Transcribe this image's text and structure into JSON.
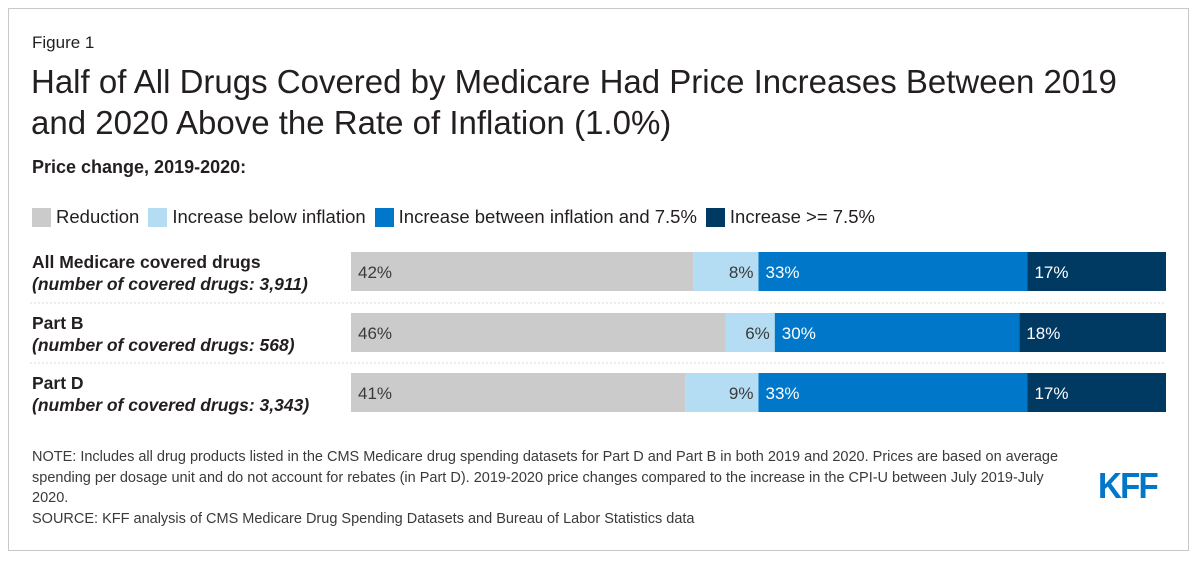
{
  "figure_label": "Figure 1",
  "title": "Half of All Drugs Covered by Medicare Had Price Increases Between 2019 and 2020 Above the Rate of Inflation (1.0%)",
  "subtitle": "Price change, 2019-2020:",
  "note": "NOTE: Includes all drug products listed in the CMS Medicare drug spending datasets for Part D and Part B in both 2019 and 2020. Prices are based on average spending per dosage unit and do not account for rebates (in Part D). 2019-2020 price changes compared to the increase in the CPI-U between July 2019-July 2020.",
  "source": "SOURCE: KFF analysis of CMS Medicare Drug Spending Datasets and Bureau of Labor Statistics data",
  "logo": "KFF",
  "chart_data": {
    "type": "bar",
    "orientation": "horizontal",
    "stacked": "100%",
    "categories": [
      {
        "label": "All Medicare covered drugs",
        "sublabel": "(number of covered drugs: 3,911)"
      },
      {
        "label": "Part B",
        "sublabel": "(number of covered drugs: 568)"
      },
      {
        "label": "Part D",
        "sublabel": "(number of covered drugs: 3,343)"
      }
    ],
    "series": [
      {
        "name": "Reduction",
        "color": "#cbcbcb",
        "label_color": "#3a3a3a",
        "values": [
          42,
          46,
          41
        ]
      },
      {
        "name": "Increase below inflation",
        "color": "#b4dcf2",
        "label_color": "#3a3a3a",
        "values": [
          8,
          6,
          9
        ]
      },
      {
        "name": "Increase between inflation and 7.5%",
        "color": "#0077c8",
        "label_color": "#ffffff",
        "values": [
          33,
          30,
          33
        ]
      },
      {
        "name": "Increase >= 7.5%",
        "color": "#003a63",
        "label_color": "#ffffff",
        "values": [
          17,
          18,
          17
        ]
      }
    ],
    "value_suffix": "%",
    "legend_position": "top-left",
    "grid": false
  }
}
